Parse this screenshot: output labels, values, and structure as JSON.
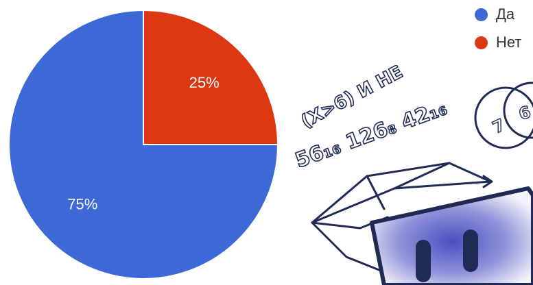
{
  "chart_data": {
    "type": "pie",
    "categories": [
      "Да",
      "Нет"
    ],
    "values": [
      75,
      25
    ],
    "data_labels": [
      "75%",
      "25%"
    ],
    "colors": [
      "#3c69d6",
      "#dc3912"
    ],
    "start_angle_deg": 0,
    "direction": "clockwise",
    "legend_position": "top-right",
    "title": ""
  },
  "legend": {
    "items": [
      {
        "label": "Да",
        "color": "#3c69d6"
      },
      {
        "label": "Нет",
        "color": "#dc3912"
      }
    ]
  },
  "illustration": {
    "handwritten_line1": "(X>6) И НЕ",
    "handwritten_line2": "56₁₆ 126₈ 42₁₆",
    "circle_digits": [
      "7",
      "6"
    ]
  }
}
